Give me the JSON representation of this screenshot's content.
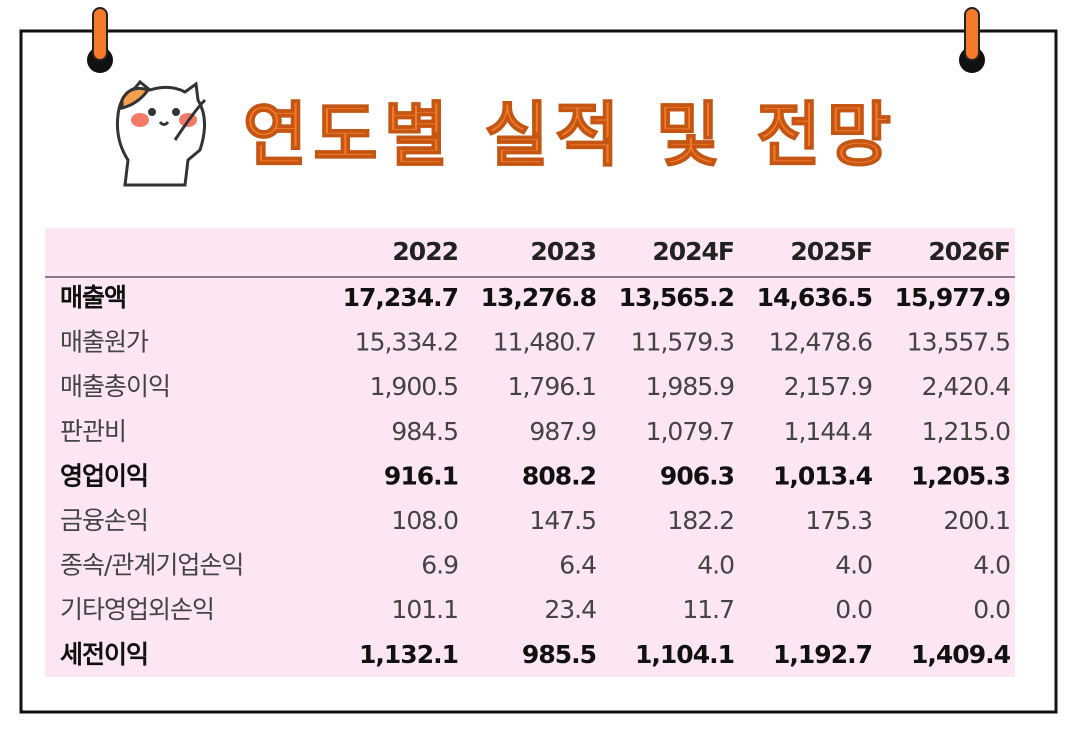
{
  "title": "연도별 실적 및 전망",
  "table": {
    "header": [
      "2022",
      "2023",
      "2024F",
      "2025F",
      "2026F"
    ],
    "rows": [
      {
        "label": "매출액",
        "bold": true,
        "cells": [
          "17,234.7",
          "13,276.8",
          "13,565.2",
          "14,636.5",
          "15,977.9"
        ]
      },
      {
        "label": "매출원가",
        "bold": false,
        "cells": [
          "15,334.2",
          "11,480.7",
          "11,579.3",
          "12,478.6",
          "13,557.5"
        ]
      },
      {
        "label": "매출총이익",
        "bold": false,
        "cells": [
          "1,900.5",
          "1,796.1",
          "1,985.9",
          "2,157.9",
          "2,420.4"
        ]
      },
      {
        "label": "판관비",
        "bold": false,
        "cells": [
          "984.5",
          "987.9",
          "1,079.7",
          "1,144.4",
          "1,215.0"
        ]
      },
      {
        "label": "영업이익",
        "bold": true,
        "cells": [
          "916.1",
          "808.2",
          "906.3",
          "1,013.4",
          "1,205.3"
        ]
      },
      {
        "label": "금융손익",
        "bold": false,
        "cells": [
          "108.0",
          "147.5",
          "182.2",
          "175.3",
          "200.1"
        ]
      },
      {
        "label": "종속/관계기업손익",
        "bold": false,
        "cells": [
          "6.9",
          "6.4",
          "4.0",
          "4.0",
          "4.0"
        ]
      },
      {
        "label": "기타영업외손익",
        "bold": false,
        "cells": [
          "101.1",
          "23.4",
          "11.7",
          "0.0",
          "0.0"
        ]
      },
      {
        "label": "세전이익",
        "bold": true,
        "cells": [
          "1,132.1",
          "985.5",
          "1,104.1",
          "1,192.7",
          "1,409.4"
        ]
      }
    ]
  }
}
